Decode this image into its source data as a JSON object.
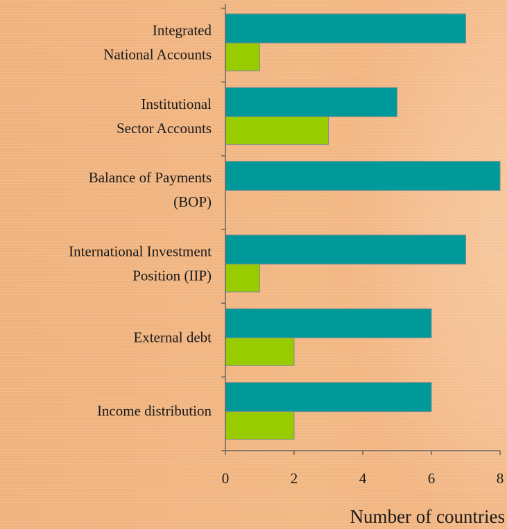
{
  "chart_data": {
    "type": "barh",
    "categories": [
      [
        "Integrated",
        "National Accounts"
      ],
      [
        "Institutional",
        "Sector Accounts"
      ],
      [
        "Balance of Payments",
        "(BOP)"
      ],
      [
        "International Investment",
        "Position (IIP)"
      ],
      [
        "External debt"
      ],
      [
        "Income distribution"
      ]
    ],
    "series": [
      {
        "color": "#009999",
        "values": [
          7,
          5,
          8,
          7,
          6,
          6
        ]
      },
      {
        "color": "#99cc00",
        "values": [
          1,
          3,
          0,
          1,
          2,
          2
        ]
      }
    ],
    "xlim": [
      0,
      8
    ],
    "xticks": [
      0,
      2,
      4,
      6,
      8
    ],
    "xlabel": "Number of countries"
  }
}
